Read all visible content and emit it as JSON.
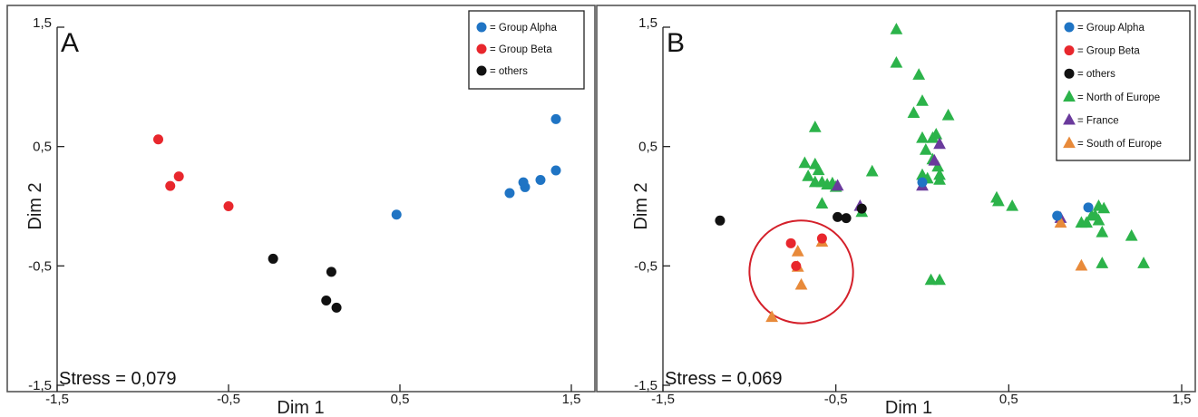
{
  "colors": {
    "group_alpha": "#1f74c4",
    "group_beta": "#e8272d",
    "others": "#111111",
    "north_of_europe": "#2cb34a",
    "france": "#6a3a9c",
    "south_of_europe": "#e88a3a",
    "ellipse": "#d4202a",
    "frame": "#555555"
  },
  "chart_data": [
    {
      "type": "scatter",
      "panel_label": "A",
      "xlabel": "Dim 1",
      "ylabel": "Dim 2",
      "xlim": [
        -1.5,
        1.5
      ],
      "ylim": [
        -1.5,
        1.5
      ],
      "xticks": [
        "-1,5",
        "-0,5",
        "0,5",
        "1,5"
      ],
      "yticks": [
        "1,5",
        "0,5",
        "-0,5",
        "-1,5"
      ],
      "grid": false,
      "legend_position": "top-right",
      "stress_label": "Stress = 0,079",
      "legend": [
        {
          "label": "= Group Alpha",
          "marker": "circle",
          "color_key": "group_alpha"
        },
        {
          "label": "= Group Beta",
          "marker": "circle",
          "color_key": "group_beta"
        },
        {
          "label": "= others",
          "marker": "circle",
          "color_key": "others"
        }
      ],
      "series": [
        {
          "name": "Group Alpha",
          "marker": "circle",
          "color_key": "group_alpha",
          "points": [
            [
              1.41,
              0.73
            ],
            [
              1.41,
              0.3
            ],
            [
              1.32,
              0.22
            ],
            [
              1.23,
              0.16
            ],
            [
              1.22,
              0.2
            ],
            [
              1.14,
              0.11
            ],
            [
              0.48,
              -0.07
            ]
          ]
        },
        {
          "name": "Group Beta",
          "marker": "circle",
          "color_key": "group_beta",
          "points": [
            [
              -0.91,
              0.56
            ],
            [
              -0.79,
              0.25
            ],
            [
              -0.84,
              0.17
            ],
            [
              -0.5,
              0.0
            ]
          ]
        },
        {
          "name": "others",
          "marker": "circle",
          "color_key": "others",
          "points": [
            [
              -0.24,
              -0.44
            ],
            [
              0.1,
              -0.55
            ],
            [
              0.07,
              -0.79
            ],
            [
              0.13,
              -0.85
            ]
          ]
        }
      ]
    },
    {
      "type": "scatter",
      "panel_label": "B",
      "xlabel": "Dim 1",
      "ylabel": "Dim 2",
      "xlim": [
        -1.5,
        1.5
      ],
      "ylim": [
        -1.5,
        1.5
      ],
      "xticks": [
        "-1,5",
        "-0,5",
        "0,5",
        "1,5"
      ],
      "yticks": [
        "1,5",
        "0,5",
        "-0,5",
        "-1,5"
      ],
      "grid": false,
      "legend_position": "top-right",
      "stress_label": "Stress = 0,069",
      "annotation_ellipse": {
        "center": [
          -0.7,
          -0.55
        ],
        "rx": 0.3,
        "ry": 0.43,
        "rotate_deg": 18
      },
      "legend": [
        {
          "label": "= Group Alpha",
          "marker": "circle",
          "color_key": "group_alpha"
        },
        {
          "label": "= Group Beta",
          "marker": "circle",
          "color_key": "group_beta"
        },
        {
          "label": "= others",
          "marker": "circle",
          "color_key": "others"
        },
        {
          "label": "= North of Europe",
          "marker": "triangle",
          "color_key": "north_of_europe"
        },
        {
          "label": "= France",
          "marker": "triangle",
          "color_key": "france"
        },
        {
          "label": "= South of Europe",
          "marker": "triangle",
          "color_key": "south_of_europe"
        }
      ],
      "series": [
        {
          "name": "North of Europe",
          "marker": "triangle",
          "color_key": "north_of_europe",
          "points": [
            [
              -0.15,
              1.48
            ],
            [
              -0.15,
              1.2
            ],
            [
              -0.02,
              1.1
            ],
            [
              0.0,
              0.88
            ],
            [
              -0.05,
              0.78
            ],
            [
              0.15,
              0.76
            ],
            [
              -0.62,
              0.66
            ],
            [
              -0.29,
              0.29
            ],
            [
              -0.68,
              0.36
            ],
            [
              -0.62,
              0.35
            ],
            [
              -0.6,
              0.3
            ],
            [
              -0.66,
              0.25
            ],
            [
              -0.62,
              0.2
            ],
            [
              -0.58,
              0.2
            ],
            [
              -0.55,
              0.18
            ],
            [
              -0.52,
              0.19
            ],
            [
              -0.5,
              0.16
            ],
            [
              -0.58,
              0.02
            ],
            [
              -0.35,
              -0.05
            ],
            [
              0.0,
              0.57
            ],
            [
              0.08,
              0.6
            ],
            [
              0.06,
              0.57
            ],
            [
              0.02,
              0.47
            ],
            [
              0.06,
              0.39
            ],
            [
              0.09,
              0.33
            ],
            [
              0.1,
              0.26
            ],
            [
              0.0,
              0.26
            ],
            [
              0.03,
              0.23
            ],
            [
              0.1,
              0.22
            ],
            [
              0.43,
              0.07
            ],
            [
              0.44,
              0.04
            ],
            [
              0.52,
              0.0
            ],
            [
              0.05,
              -0.62
            ],
            [
              0.1,
              -0.62
            ],
            [
              0.98,
              -0.08
            ],
            [
              1.02,
              0.0
            ],
            [
              1.05,
              -0.02
            ],
            [
              1.0,
              -0.08
            ],
            [
              1.02,
              -0.12
            ],
            [
              0.92,
              -0.14
            ],
            [
              0.95,
              -0.14
            ],
            [
              1.04,
              -0.22
            ],
            [
              1.21,
              -0.25
            ],
            [
              1.04,
              -0.48
            ],
            [
              1.28,
              -0.48
            ]
          ]
        },
        {
          "name": "France",
          "marker": "triangle",
          "color_key": "france",
          "points": [
            [
              0.1,
              0.52
            ],
            [
              0.07,
              0.38
            ],
            [
              0.0,
              0.17
            ],
            [
              -0.49,
              0.17
            ],
            [
              -0.36,
              0.0
            ],
            [
              0.8,
              -0.1
            ]
          ]
        },
        {
          "name": "South of Europe",
          "marker": "triangle",
          "color_key": "south_of_europe",
          "points": [
            [
              -0.58,
              -0.3
            ],
            [
              -0.72,
              -0.38
            ],
            [
              -0.72,
              -0.51
            ],
            [
              -0.7,
              -0.66
            ],
            [
              -0.87,
              -0.93
            ],
            [
              0.92,
              -0.5
            ],
            [
              0.8,
              -0.14
            ]
          ]
        },
        {
          "name": "Group Alpha",
          "marker": "circle",
          "color_key": "group_alpha",
          "points": [
            [
              0.78,
              -0.08
            ],
            [
              0.96,
              -0.01
            ],
            [
              0.0,
              0.2
            ]
          ]
        },
        {
          "name": "Group Beta",
          "marker": "circle",
          "color_key": "group_beta",
          "points": [
            [
              -0.76,
              -0.31
            ],
            [
              -0.58,
              -0.27
            ],
            [
              -0.73,
              -0.5
            ]
          ]
        },
        {
          "name": "others",
          "marker": "circle",
          "color_key": "others",
          "points": [
            [
              -1.17,
              -0.12
            ],
            [
              -0.49,
              -0.09
            ],
            [
              -0.44,
              -0.1
            ],
            [
              -0.35,
              -0.02
            ]
          ]
        }
      ]
    }
  ]
}
